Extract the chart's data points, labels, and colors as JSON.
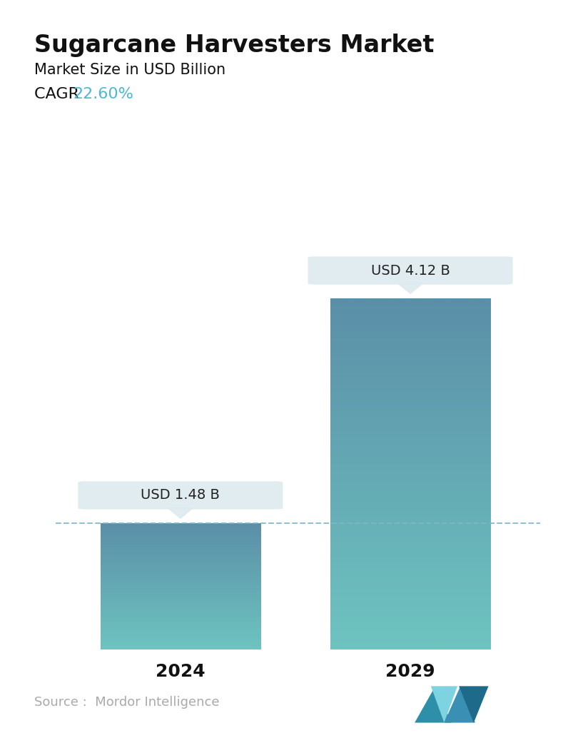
{
  "title": "Sugarcane Harvesters Market",
  "subtitle": "Market Size in USD Billion",
  "cagr_label": "CAGR ",
  "cagr_value": "22.60%",
  "cagr_color": "#4db8d4",
  "categories": [
    "2024",
    "2029"
  ],
  "values": [
    1.48,
    4.12
  ],
  "bar_labels": [
    "USD 1.48 B",
    "USD 4.12 B"
  ],
  "bar_color_top": "#5b8fa8",
  "bar_color_bottom": "#6ec4c0",
  "dashed_line_color": "#7ab8cc",
  "source_text": "Source :  Mordor Intelligence",
  "source_color": "#aaaaaa",
  "background_color": "#ffffff",
  "title_fontsize": 24,
  "subtitle_fontsize": 15,
  "cagr_fontsize": 16,
  "bar_label_fontsize": 14,
  "tick_fontsize": 18,
  "source_fontsize": 13,
  "ylim": [
    0,
    5.2
  ],
  "bar_positions": [
    0.27,
    0.73
  ],
  "bar_width": 0.32
}
